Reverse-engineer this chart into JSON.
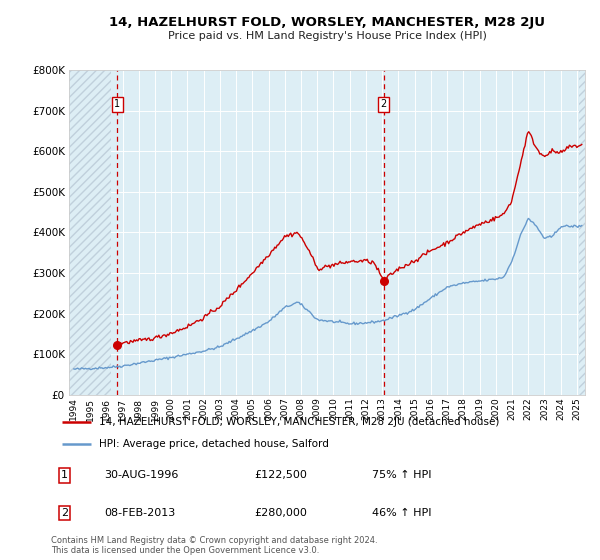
{
  "title": "14, HAZELHURST FOLD, WORSLEY, MANCHESTER, M28 2JU",
  "subtitle": "Price paid vs. HM Land Registry's House Price Index (HPI)",
  "legend_line1": "14, HAZELHURST FOLD, WORSLEY, MANCHESTER, M28 2JU (detached house)",
  "legend_line2": "HPI: Average price, detached house, Salford",
  "footnote1": "Contains HM Land Registry data © Crown copyright and database right 2024.",
  "footnote2": "This data is licensed under the Open Government Licence v3.0.",
  "sale1_date": "30-AUG-1996",
  "sale1_price": "£122,500",
  "sale1_hpi": "75% ↑ HPI",
  "sale2_date": "08-FEB-2013",
  "sale2_price": "£280,000",
  "sale2_hpi": "46% ↑ HPI",
  "sale1_year": 1996.67,
  "sale1_value": 122500,
  "sale2_year": 2013.1,
  "sale2_value": 280000,
  "red_color": "#cc0000",
  "blue_color": "#6699cc",
  "plot_bg_color": "#ddeef5",
  "hatch_color": "#c0d0dc",
  "grid_color": "#ffffff",
  "ylim_max": 800000,
  "xlim_start": 1993.7,
  "xlim_end": 2025.5,
  "hatch_end_year": 1996.3,
  "dashed_line1_year": 1996.67,
  "dashed_line2_year": 2013.1,
  "title_fontsize": 9.5,
  "subtitle_fontsize": 8.0,
  "tick_fontsize": 6.5,
  "ytick_fontsize": 7.5,
  "legend_fontsize": 7.5,
  "table_fontsize": 8.0,
  "footnote_fontsize": 6.0
}
